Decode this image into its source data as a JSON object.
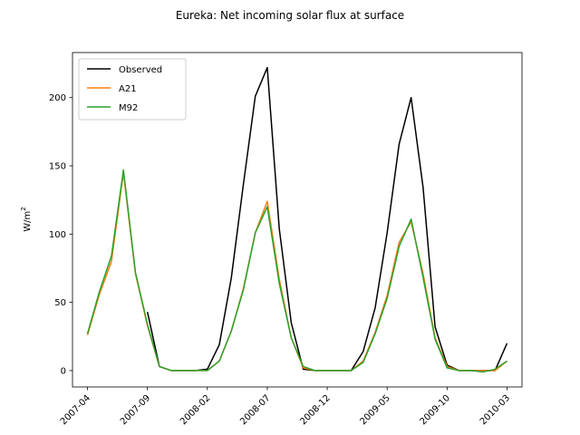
{
  "chart_data": {
    "type": "line",
    "title": "Eureka: Net incoming solar flux at surface",
    "xlabel": "",
    "ylabel_base": "W/m",
    "ylabel_sup": "2",
    "x": [
      "2007-04",
      "2007-05",
      "2007-06",
      "2007-07",
      "2007-08",
      "2007-09",
      "2007-10",
      "2007-11",
      "2007-12",
      "2008-01",
      "2008-02",
      "2008-03",
      "2008-04",
      "2008-05",
      "2008-06",
      "2008-07",
      "2008-08",
      "2008-09",
      "2008-10",
      "2008-11",
      "2008-12",
      "2009-01",
      "2009-02",
      "2009-03",
      "2009-04",
      "2009-05",
      "2009-06",
      "2009-07",
      "2009-08",
      "2009-09",
      "2009-10",
      "2009-11",
      "2009-12",
      "2010-01",
      "2010-02",
      "2010-03"
    ],
    "x_ticks": [
      "2007-04",
      "2007-09",
      "2008-02",
      "2008-07",
      "2008-12",
      "2009-05",
      "2009-10",
      "2010-03"
    ],
    "y_ticks": [
      0,
      50,
      100,
      150,
      200
    ],
    "ylim": [
      -12,
      233
    ],
    "xlim_months": [
      -1.25,
      36.25
    ],
    "legend_position": "upper-left",
    "grid": false,
    "series": [
      {
        "name": "Observed",
        "color": "#000000",
        "values": [
          26,
          null,
          null,
          null,
          null,
          43,
          3,
          0,
          0,
          0,
          1,
          19,
          68,
          136,
          201,
          222,
          104,
          35,
          1,
          0,
          0,
          0,
          0,
          14,
          46,
          101,
          166,
          200,
          134,
          32,
          4,
          0,
          0,
          0,
          0,
          20
        ]
      },
      {
        "name": "A21",
        "color": "#ff7f0e",
        "values": [
          26,
          56,
          80,
          145,
          71,
          33,
          3,
          0,
          0,
          0,
          0,
          7,
          29,
          60,
          101,
          124,
          67,
          24,
          2,
          0,
          0,
          0,
          0,
          7,
          28,
          55,
          94,
          109,
          71,
          24,
          3,
          0,
          0,
          0,
          0,
          7
        ]
      },
      {
        "name": "M92",
        "color": "#2ca02c",
        "values": [
          27,
          58,
          84,
          147,
          72,
          34,
          3,
          0,
          0,
          0,
          0,
          7,
          29,
          59,
          101,
          120,
          64,
          24,
          3,
          0,
          0,
          0,
          0,
          6,
          27,
          53,
          91,
          111,
          68,
          23,
          2,
          0,
          0,
          -1,
          1,
          7
        ]
      }
    ]
  }
}
